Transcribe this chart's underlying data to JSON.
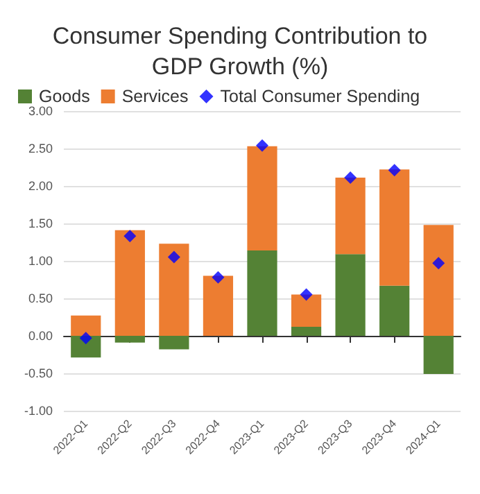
{
  "chart_data": {
    "type": "bar",
    "title": "Consumer Spending Contribution to\nGDP Growth (%)",
    "stacked": true,
    "categories": [
      "2022-Q1",
      "2022-Q2",
      "2022-Q3",
      "2022-Q4",
      "2023-Q1",
      "2023-Q2",
      "2023-Q3",
      "2023-Q4",
      "2024-Q1"
    ],
    "series": [
      {
        "name": "Goods",
        "color": "#548235",
        "values": [
          -0.29,
          -0.09,
          -0.18,
          0,
          1.14,
          0.12,
          1.09,
          0.67,
          -0.51
        ]
      },
      {
        "name": "Services",
        "color": "#ed7d31",
        "values": [
          0.27,
          1.41,
          1.23,
          0.8,
          1.39,
          0.43,
          1.02,
          1.55,
          1.48
        ]
      },
      {
        "name": "Total Consumer Spending",
        "type": "scatter",
        "marker": "diamond",
        "color": "#0000ff",
        "values": [
          -0.03,
          1.33,
          1.05,
          0.78,
          2.54,
          0.55,
          2.11,
          2.21,
          0.97
        ]
      }
    ],
    "ylim": [
      -1,
      3
    ],
    "yticks": [
      {
        "value": -1,
        "label": "-1.00"
      },
      {
        "value": -0.5,
        "label": "-0.50"
      },
      {
        "value": 0,
        "label": "0.00"
      },
      {
        "value": 0.5,
        "label": "0.50"
      },
      {
        "value": 1,
        "label": "1.00"
      },
      {
        "value": 1.5,
        "label": "1.50"
      },
      {
        "value": 2,
        "label": "2.00"
      },
      {
        "value": 2.5,
        "label": "2.50"
      },
      {
        "value": 3,
        "label": "3.00"
      }
    ],
    "grid": "y",
    "legend": "top"
  }
}
